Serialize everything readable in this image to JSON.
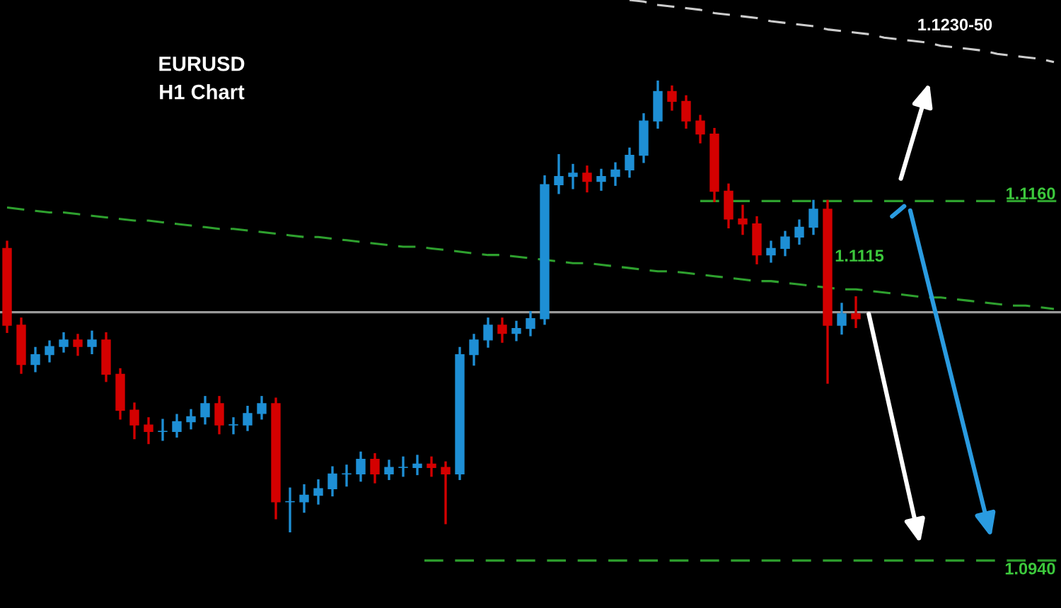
{
  "chart_data": {
    "type": "candlestick",
    "title": "EURUSD\nH1 Chart",
    "categories": [
      null,
      null,
      null,
      null,
      null,
      null,
      null,
      null,
      null,
      null,
      null,
      null,
      null,
      null,
      null,
      null,
      null,
      null,
      null,
      null,
      null,
      null,
      null,
      null,
      null,
      null,
      null,
      null,
      null,
      null,
      null,
      null,
      null,
      null,
      null,
      null,
      null,
      null,
      null,
      null,
      null,
      null,
      null,
      null,
      null,
      null,
      null,
      null,
      null,
      null,
      null,
      null,
      null,
      null,
      null,
      null,
      null,
      null,
      null,
      null,
      null,
      null,
      null,
      null,
      null,
      null,
      null,
      null,
      null,
      null,
      null,
      null,
      null,
      null,
      null
    ],
    "colors": [
      "#d40000",
      "#d40000",
      "#1e8fd5",
      "#1e8fd5",
      "#1e8fd5",
      "#d40000",
      "#1e8fd5",
      "#d40000",
      "#d40000",
      "#d40000",
      "#d40000",
      "#1e8fd5",
      "#1e8fd5",
      "#1e8fd5",
      "#1e8fd5",
      "#d40000",
      "#1e8fd5",
      "#1e8fd5",
      "#1e8fd5",
      "#d40000",
      "#1e8fd5",
      "#1e8fd5",
      "#1e8fd5",
      "#1e8fd5",
      "#1e8fd5",
      "#1e8fd5",
      "#d40000",
      "#1e8fd5",
      "#1e8fd5",
      "#1e8fd5",
      "#d40000",
      "#d40000",
      "#1e8fd5",
      "#1e8fd5",
      "#1e8fd5",
      "#d40000",
      "#1e8fd5",
      "#1e8fd5",
      "#1e8fd5",
      "#1e8fd5",
      "#1e8fd5",
      "#d40000",
      "#1e8fd5",
      "#1e8fd5",
      "#1e8fd5",
      "#1e8fd5",
      "#1e8fd5",
      "#d40000",
      "#d40000",
      "#d40000",
      "#d40000",
      "#d40000",
      "#d40000",
      "#d40000",
      "#1e8fd5",
      "#1e8fd5",
      "#1e8fd5",
      "#1e8fd5",
      "#d40000",
      "#1e8fd5",
      "#d40000",
      null,
      null,
      null,
      null,
      null,
      null,
      null,
      null,
      null,
      null,
      null,
      null,
      null,
      null
    ],
    "series": [
      {
        "type": "line",
        "color": "#2ea02e",
        "line_style": "dashed",
        "values": [
          1.1156,
          1.1155,
          1.1154,
          1.1153,
          1.1153,
          1.1152,
          1.1151,
          1.115,
          1.1149,
          1.1148,
          1.1148,
          1.1147,
          1.1146,
          1.1145,
          1.1144,
          1.1143,
          1.1143,
          1.1142,
          1.1141,
          1.114,
          1.1139,
          1.1138,
          1.1138,
          1.1137,
          1.1136,
          1.1135,
          1.1134,
          1.1133,
          1.1132,
          1.1132,
          1.1131,
          1.113,
          1.1129,
          1.1128,
          1.1127,
          1.1127,
          1.1126,
          1.1125,
          1.1124,
          1.1123,
          1.1122,
          1.1122,
          1.1121,
          1.112,
          1.1119,
          1.1118,
          1.1117,
          1.1117,
          1.1116,
          1.1115,
          1.1114,
          1.1113,
          1.1112,
          1.1111,
          1.1111,
          1.111,
          1.1109,
          1.1108,
          1.1107,
          1.1106,
          1.1106,
          1.1105,
          1.1104,
          1.1103,
          1.1102,
          1.1101,
          1.1101,
          1.11,
          1.1099,
          1.1098,
          1.1097,
          1.1096,
          1.1096,
          1.1095,
          1.1094
        ]
      },
      {
        "type": "line",
        "color": "#cccccc",
        "line_style": "dashed",
        "values": [
          null,
          null,
          null,
          null,
          null,
          null,
          null,
          null,
          null,
          null,
          null,
          null,
          null,
          null,
          null,
          null,
          null,
          null,
          null,
          null,
          null,
          null,
          null,
          null,
          null,
          null,
          null,
          null,
          null,
          null,
          null,
          null,
          null,
          null,
          null,
          null,
          null,
          null,
          null,
          null,
          null,
          null,
          null,
          null,
          1.1283,
          1.1282,
          1.128,
          1.1279,
          1.1278,
          1.1277,
          1.1275,
          1.1274,
          1.1273,
          1.1272,
          1.127,
          1.1269,
          1.1268,
          1.1267,
          1.1265,
          1.1264,
          1.1263,
          1.1262,
          1.126,
          1.1259,
          1.1258,
          1.1257,
          1.1255,
          1.1254,
          1.1253,
          1.1252,
          1.125,
          1.1249,
          1.1248,
          1.1247,
          1.1245
        ]
      }
    ],
    "ohlc": [
      [
        1.1131,
        1.1135,
        1.108,
        1.1084
      ],
      [
        1.1084,
        1.1088,
        1.1055,
        1.106
      ],
      [
        1.106,
        1.107,
        1.1056,
        1.1066
      ],
      [
        1.1066,
        1.1074,
        1.1062,
        1.1071
      ],
      [
        1.1071,
        1.1079,
        1.1068,
        1.1075
      ],
      [
        1.1075,
        1.1078,
        1.1066,
        1.1071
      ],
      [
        1.1071,
        1.108,
        1.1067,
        1.1075
      ],
      [
        1.1075,
        1.1079,
        1.105,
        1.1054
      ],
      [
        1.1054,
        1.1057,
        1.1027,
        1.1032
      ],
      [
        1.1032,
        1.1036,
        1.1015,
        1.1023
      ],
      [
        1.1023,
        1.1027,
        1.1012,
        1.1019
      ],
      [
        1.1019,
        1.1026,
        1.1014,
        1.1019
      ],
      [
        1.1019,
        1.1029,
        1.1016,
        1.1025
      ],
      [
        1.1025,
        1.1032,
        1.1021,
        1.1028
      ],
      [
        1.1028,
        1.104,
        1.1024,
        1.1036
      ],
      [
        1.1036,
        1.104,
        1.1018,
        1.1023
      ],
      [
        1.1023,
        1.1027,
        1.1018,
        1.1023
      ],
      [
        1.1023,
        1.1034,
        1.102,
        1.103
      ],
      [
        1.103,
        1.104,
        1.1027,
        1.1036
      ],
      [
        1.1036,
        1.1039,
        1.0966,
        1.0976
      ],
      [
        1.0976,
        1.0984,
        1.0958,
        1.0976
      ],
      [
        1.0976,
        1.0986,
        1.097,
        1.098
      ],
      [
        1.098,
        1.0989,
        1.0975,
        1.0984
      ],
      [
        1.0984,
        1.0997,
        1.098,
        1.0993
      ],
      [
        1.0993,
        1.0998,
        1.0986,
        1.0993
      ],
      [
        1.0993,
        1.1006,
        1.0989,
        1.1002
      ],
      [
        1.1002,
        1.1005,
        1.0988,
        1.0993
      ],
      [
        1.0993,
        1.1001,
        1.099,
        1.0997
      ],
      [
        1.0997,
        1.1003,
        1.0992,
        1.0997
      ],
      [
        1.0997,
        1.1004,
        1.0993,
        1.0999
      ],
      [
        1.0999,
        1.1003,
        1.0992,
        1.0997
      ],
      [
        1.0997,
        1.1,
        1.0963,
        1.0993
      ],
      [
        1.0993,
        1.107,
        1.099,
        1.1066
      ],
      [
        1.1066,
        1.1078,
        1.106,
        1.1075
      ],
      [
        1.1075,
        1.1088,
        1.1071,
        1.1084
      ],
      [
        1.1084,
        1.1088,
        1.1074,
        1.1079
      ],
      [
        1.1079,
        1.1086,
        1.1075,
        1.1082
      ],
      [
        1.1082,
        1.1092,
        1.1078,
        1.1088
      ],
      [
        1.1088,
        1.1175,
        1.1085,
        1.117
      ],
      [
        1.117,
        1.1188,
        1.1165,
        1.1175
      ],
      [
        1.1175,
        1.1182,
        1.1168,
        1.1177
      ],
      [
        1.1177,
        1.1181,
        1.1166,
        1.1172
      ],
      [
        1.1172,
        1.1179,
        1.1167,
        1.1175
      ],
      [
        1.1175,
        1.1183,
        1.117,
        1.1179
      ],
      [
        1.1179,
        1.1192,
        1.1175,
        1.1188
      ],
      [
        1.1188,
        1.1213,
        1.1184,
        1.1209
      ],
      [
        1.1209,
        1.1233,
        1.1205,
        1.1227
      ],
      [
        1.1227,
        1.123,
        1.1216,
        1.1221
      ],
      [
        1.1221,
        1.1224,
        1.1205,
        1.1209
      ],
      [
        1.1209,
        1.1212,
        1.1196,
        1.1201
      ],
      [
        1.1201,
        1.1204,
        1.116,
        1.1166
      ],
      [
        1.1166,
        1.117,
        1.1144,
        1.1149
      ],
      [
        1.1149,
        1.1157,
        1.114,
        1.1146
      ],
      [
        1.1146,
        1.115,
        1.1122,
        1.1127
      ],
      [
        1.1127,
        1.1135,
        1.1123,
        1.1131
      ],
      [
        1.1131,
        1.1141,
        1.1127,
        1.1138
      ],
      [
        1.1138,
        1.1148,
        1.1134,
        1.1144
      ],
      [
        1.1144,
        1.116,
        1.114,
        1.1155
      ],
      [
        1.1155,
        1.116,
        1.1049,
        1.1084
      ],
      [
        1.1084,
        1.1097,
        1.1079,
        1.1091
      ],
      [
        1.1091,
        1.1101,
        1.1083,
        1.1088
      ],
      null,
      null,
      null,
      null,
      null,
      null,
      null,
      null,
      null,
      null,
      null,
      null,
      null,
      null
    ],
    "ylim": [
      1.0911,
      1.1283
    ],
    "ref_lines": [
      {
        "axis": "y",
        "value": 1.116,
        "label": "1.1160",
        "color": "#2ea02e",
        "line_style": "dashed"
      },
      {
        "axis": "y",
        "value": 1.1092,
        "label": null,
        "color": "#9a9a9a",
        "line_style": "solid"
      },
      {
        "axis": "y",
        "value": 1.094,
        "label": "1.0940",
        "color": "#2ea02e",
        "line_style": "dashed"
      }
    ],
    "annotations": [
      "1.1230-50",
      "1.1115"
    ]
  }
}
